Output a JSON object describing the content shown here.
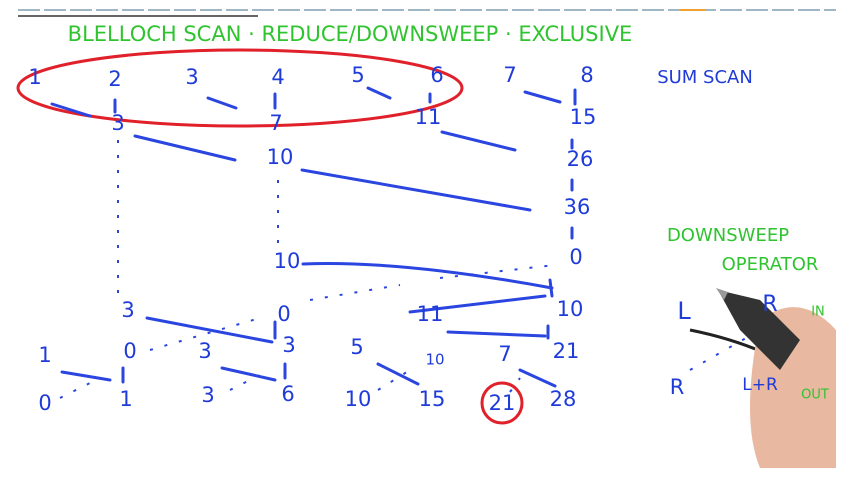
{
  "title": "BLELLOCH SCAN · REDUCE/DOWNSWEEP · EXCLUSIVE",
  "input_row": [
    "1",
    "2",
    "3",
    "4",
    "5",
    "6",
    "7",
    "8"
  ],
  "sum_scan_label": "SUM SCAN",
  "reduce_steps": [
    [
      "3",
      "7",
      "11",
      "15"
    ],
    [
      "10",
      "26"
    ],
    [
      "36"
    ]
  ],
  "downsweep_steps": [
    [
      "10",
      "0"
    ],
    [
      "3",
      "0",
      "11",
      "10"
    ],
    [
      "1",
      "0",
      "3",
      "3",
      "5",
      "10",
      "7",
      "21"
    ],
    [
      "0",
      "1",
      "3",
      "6",
      "10",
      "15",
      "21",
      "28"
    ]
  ],
  "operator": {
    "title_1": "DOWNSWEEP",
    "title_2": "OPERATOR",
    "in_left": "L",
    "in_right": "R",
    "in_label": "IN",
    "out_left": "R",
    "out_right": "L+R",
    "out_label": "OUT"
  }
}
